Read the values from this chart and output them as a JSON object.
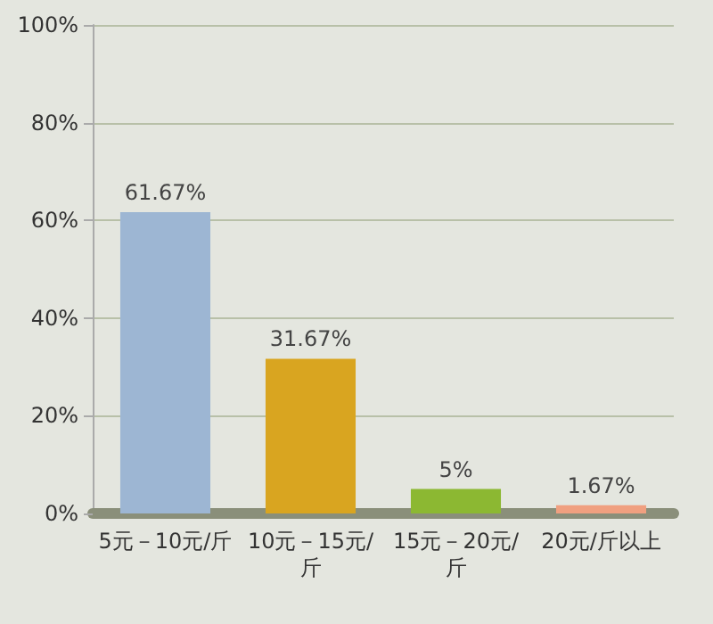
{
  "chart_data": {
    "type": "bar",
    "categories": [
      "5元－10元/斤",
      "10元－15元/斤",
      "15元－20元/斤",
      "20元/斤以上"
    ],
    "values": [
      61.67,
      31.67,
      5,
      1.67
    ],
    "value_labels": [
      "61.67%",
      "31.67%",
      "5%",
      "1.67%"
    ],
    "colors": [
      "#9db6d3",
      "#d9a520",
      "#8cb832",
      "#f0a080"
    ],
    "ylim": [
      0,
      100
    ],
    "yticks": [
      {
        "value": 0,
        "label": "0%"
      },
      {
        "value": 20,
        "label": "20%"
      },
      {
        "value": 40,
        "label": "40%"
      },
      {
        "value": 60,
        "label": "60%"
      },
      {
        "value": 80,
        "label": "80%"
      },
      {
        "value": 100,
        "label": "100%"
      }
    ],
    "grid": "y"
  }
}
